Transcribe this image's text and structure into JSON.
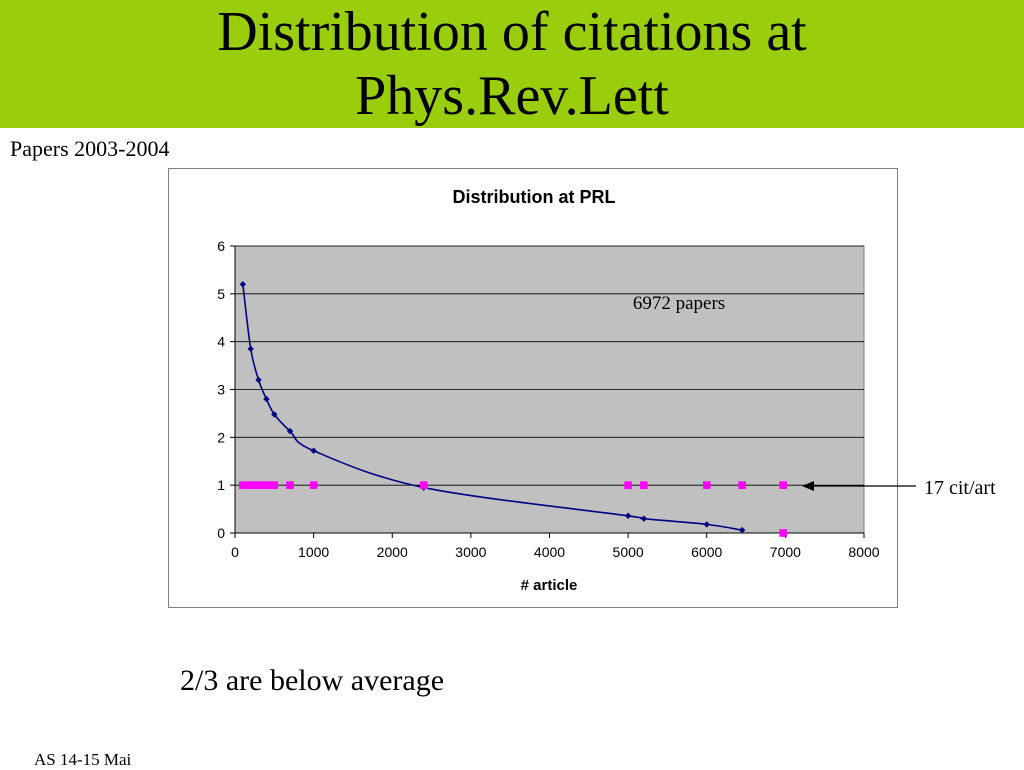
{
  "slide": {
    "title_line1": "Distribution of citations at",
    "title_line2": "Phys.Rev.Lett",
    "subtitle": "Papers 2003-2004",
    "annotation": "17 cit/art",
    "note": "2/3 are below average",
    "footer": "AS 14-15 Mai"
  },
  "colors": {
    "title_bar": "#9acd0c",
    "plot_area": "#c0c0c0",
    "series_curve": "#000080",
    "series_markers": "#ff00ff"
  },
  "chart_data": {
    "type": "scatter",
    "title": "Distribution at PRL",
    "xlabel": "# article",
    "ylabel": "",
    "xlim": [
      0,
      8000
    ],
    "ylim": [
      0,
      6
    ],
    "x_ticks": [
      "0",
      "1000",
      "2000",
      "3000",
      "4000",
      "5000",
      "6000",
      "7000",
      "8000"
    ],
    "y_ticks": [
      "0",
      "1",
      "2",
      "3",
      "4",
      "5",
      "6"
    ],
    "grid": "horizontal",
    "legend": "none",
    "annotation_in_plot": "6972 papers",
    "series": [
      {
        "style": "smoothed line with diamond markers",
        "points": [
          [
            100,
            5.2
          ],
          [
            200,
            3.85
          ],
          [
            300,
            3.2
          ],
          [
            400,
            2.8
          ],
          [
            500,
            2.48
          ],
          [
            700,
            2.13
          ],
          [
            1000,
            1.72
          ],
          [
            2400,
            0.95
          ],
          [
            5000,
            0.36
          ],
          [
            5200,
            0.3
          ],
          [
            6000,
            0.18
          ],
          [
            6450,
            0.06
          ]
        ]
      },
      {
        "style": "square markers",
        "points": [
          [
            100,
            1
          ],
          [
            150,
            1
          ],
          [
            200,
            1
          ],
          [
            250,
            1
          ],
          [
            300,
            1
          ],
          [
            350,
            1
          ],
          [
            400,
            1
          ],
          [
            450,
            1
          ],
          [
            500,
            1
          ],
          [
            700,
            1
          ],
          [
            1000,
            1
          ],
          [
            2400,
            1
          ],
          [
            5000,
            1
          ],
          [
            5200,
            1
          ],
          [
            6000,
            1
          ],
          [
            6450,
            1
          ],
          [
            6972,
            1
          ],
          [
            6972,
            0
          ]
        ]
      }
    ]
  }
}
